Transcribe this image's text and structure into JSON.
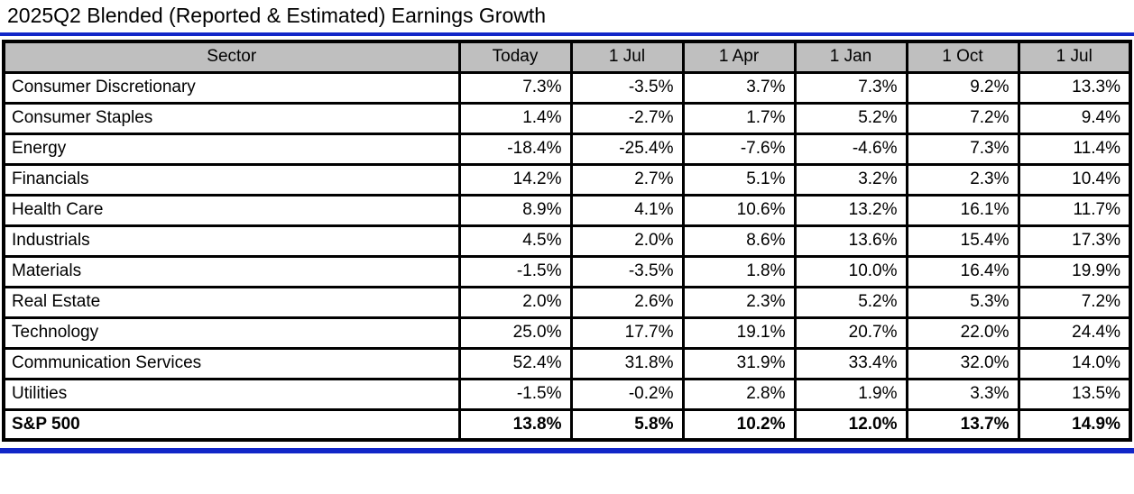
{
  "title": "2025Q2 Blended (Reported & Estimated) Earnings Growth",
  "colors": {
    "accent_blue": "#1126C8",
    "header_bg": "#BFBFBF",
    "grid": "#000000",
    "text": "#000000",
    "background": "#FFFFFF"
  },
  "table": {
    "columns": [
      "Sector",
      "Today",
      "1 Jul",
      "1 Apr",
      "1 Jan",
      "1 Oct",
      "1 Jul"
    ],
    "rows": [
      {
        "sector": "Consumer Discretionary",
        "values": [
          "7.3%",
          "-3.5%",
          "3.7%",
          "7.3%",
          "9.2%",
          "13.3%"
        ],
        "bold": false
      },
      {
        "sector": "Consumer Staples",
        "values": [
          "1.4%",
          "-2.7%",
          "1.7%",
          "5.2%",
          "7.2%",
          "9.4%"
        ],
        "bold": false
      },
      {
        "sector": "Energy",
        "values": [
          "-18.4%",
          "-25.4%",
          "-7.6%",
          "-4.6%",
          "7.3%",
          "11.4%"
        ],
        "bold": false
      },
      {
        "sector": "Financials",
        "values": [
          "14.2%",
          "2.7%",
          "5.1%",
          "3.2%",
          "2.3%",
          "10.4%"
        ],
        "bold": false
      },
      {
        "sector": "Health Care",
        "values": [
          "8.9%",
          "4.1%",
          "10.6%",
          "13.2%",
          "16.1%",
          "11.7%"
        ],
        "bold": false
      },
      {
        "sector": "Industrials",
        "values": [
          "4.5%",
          "2.0%",
          "8.6%",
          "13.6%",
          "15.4%",
          "17.3%"
        ],
        "bold": false
      },
      {
        "sector": "Materials",
        "values": [
          "-1.5%",
          "-3.5%",
          "1.8%",
          "10.0%",
          "16.4%",
          "19.9%"
        ],
        "bold": false
      },
      {
        "sector": "Real Estate",
        "values": [
          "2.0%",
          "2.6%",
          "2.3%",
          "5.2%",
          "5.3%",
          "7.2%"
        ],
        "bold": false
      },
      {
        "sector": "Technology",
        "values": [
          "25.0%",
          "17.7%",
          "19.1%",
          "20.7%",
          "22.0%",
          "24.4%"
        ],
        "bold": false
      },
      {
        "sector": "Communication Services",
        "values": [
          "52.4%",
          "31.8%",
          "31.9%",
          "33.4%",
          "32.0%",
          "14.0%"
        ],
        "bold": false
      },
      {
        "sector": "Utilities",
        "values": [
          "-1.5%",
          "-0.2%",
          "2.8%",
          "1.9%",
          "3.3%",
          "13.5%"
        ],
        "bold": false
      },
      {
        "sector": "S&P 500",
        "values": [
          "13.8%",
          "5.8%",
          "10.2%",
          "12.0%",
          "13.7%",
          "14.9%"
        ],
        "bold": true
      }
    ]
  },
  "chart_data": {
    "type": "table",
    "title": "2025Q2 Blended (Reported & Estimated) Earnings Growth",
    "unit": "percent",
    "columns": [
      "Today",
      "1 Jul",
      "1 Apr",
      "1 Jan",
      "1 Oct",
      "1 Jul"
    ],
    "series": [
      {
        "name": "Consumer Discretionary",
        "values": [
          7.3,
          -3.5,
          3.7,
          7.3,
          9.2,
          13.3
        ]
      },
      {
        "name": "Consumer Staples",
        "values": [
          1.4,
          -2.7,
          1.7,
          5.2,
          7.2,
          9.4
        ]
      },
      {
        "name": "Energy",
        "values": [
          -18.4,
          -25.4,
          -7.6,
          -4.6,
          7.3,
          11.4
        ]
      },
      {
        "name": "Financials",
        "values": [
          14.2,
          2.7,
          5.1,
          3.2,
          2.3,
          10.4
        ]
      },
      {
        "name": "Health Care",
        "values": [
          8.9,
          4.1,
          10.6,
          13.2,
          16.1,
          11.7
        ]
      },
      {
        "name": "Industrials",
        "values": [
          4.5,
          2.0,
          8.6,
          13.6,
          15.4,
          17.3
        ]
      },
      {
        "name": "Materials",
        "values": [
          -1.5,
          -3.5,
          1.8,
          10.0,
          16.4,
          19.9
        ]
      },
      {
        "name": "Real Estate",
        "values": [
          2.0,
          2.6,
          2.3,
          5.2,
          5.3,
          7.2
        ]
      },
      {
        "name": "Technology",
        "values": [
          25.0,
          17.7,
          19.1,
          20.7,
          22.0,
          24.4
        ]
      },
      {
        "name": "Communication Services",
        "values": [
          52.4,
          31.8,
          31.9,
          33.4,
          32.0,
          14.0
        ]
      },
      {
        "name": "Utilities",
        "values": [
          -1.5,
          -0.2,
          2.8,
          1.9,
          3.3,
          13.5
        ]
      },
      {
        "name": "S&P 500",
        "values": [
          13.8,
          5.8,
          10.2,
          12.0,
          13.7,
          14.9
        ]
      }
    ]
  }
}
